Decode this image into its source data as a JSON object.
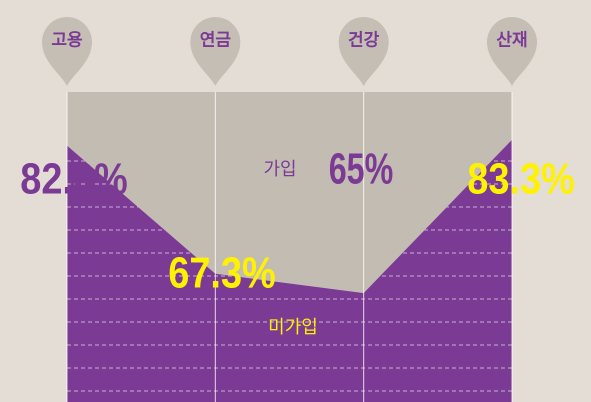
{
  "chart_data": {
    "type": "area",
    "categories": [
      "고용",
      "연금",
      "건강",
      "산재"
    ],
    "values": [
      82.6,
      67.3,
      65,
      83.3
    ],
    "value_labels": [
      "82.6%",
      "67.3%",
      "65%",
      "83.3%"
    ],
    "annotations": [
      "가입",
      "미가입"
    ],
    "color": "#7b3a93",
    "ylim": [
      52,
      89
    ]
  }
}
